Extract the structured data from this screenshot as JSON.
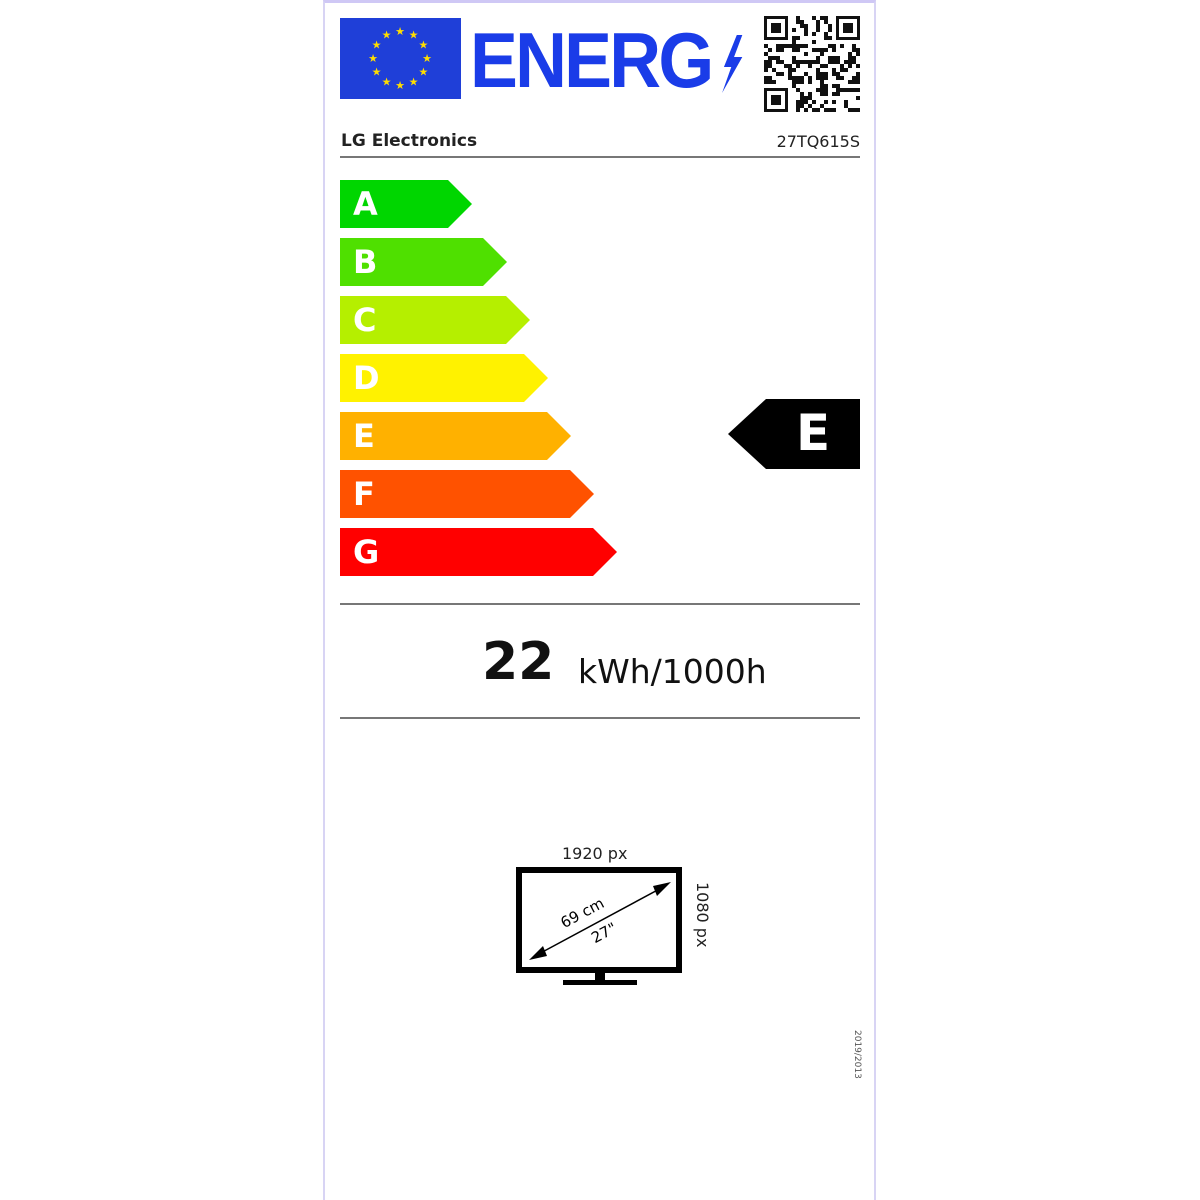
{
  "header": {
    "logo_text": "ENERG",
    "eu_flag_icon": "eu-flag-icon",
    "qr_code_icon": "qr-code-icon",
    "brand_color": "#1a3ce8"
  },
  "supplier": "LG Electronics",
  "model": "27TQ615S",
  "scale": [
    {
      "letter": "A",
      "color": "#00d600"
    },
    {
      "letter": "B",
      "color": "#4fe000"
    },
    {
      "letter": "C",
      "color": "#b5ef00"
    },
    {
      "letter": "D",
      "color": "#fff200"
    },
    {
      "letter": "E",
      "color": "#ffb100"
    },
    {
      "letter": "F",
      "color": "#ff5200"
    },
    {
      "letter": "G",
      "color": "#ff0000"
    }
  ],
  "rating": "E",
  "consumption": {
    "value": "22",
    "unit": "kWh/1000h"
  },
  "screen": {
    "width_px": "1920 px",
    "height_px": "1080 px",
    "diagonal_cm": "69 cm",
    "diagonal_in": "27\""
  },
  "regulation": "2019/2013"
}
